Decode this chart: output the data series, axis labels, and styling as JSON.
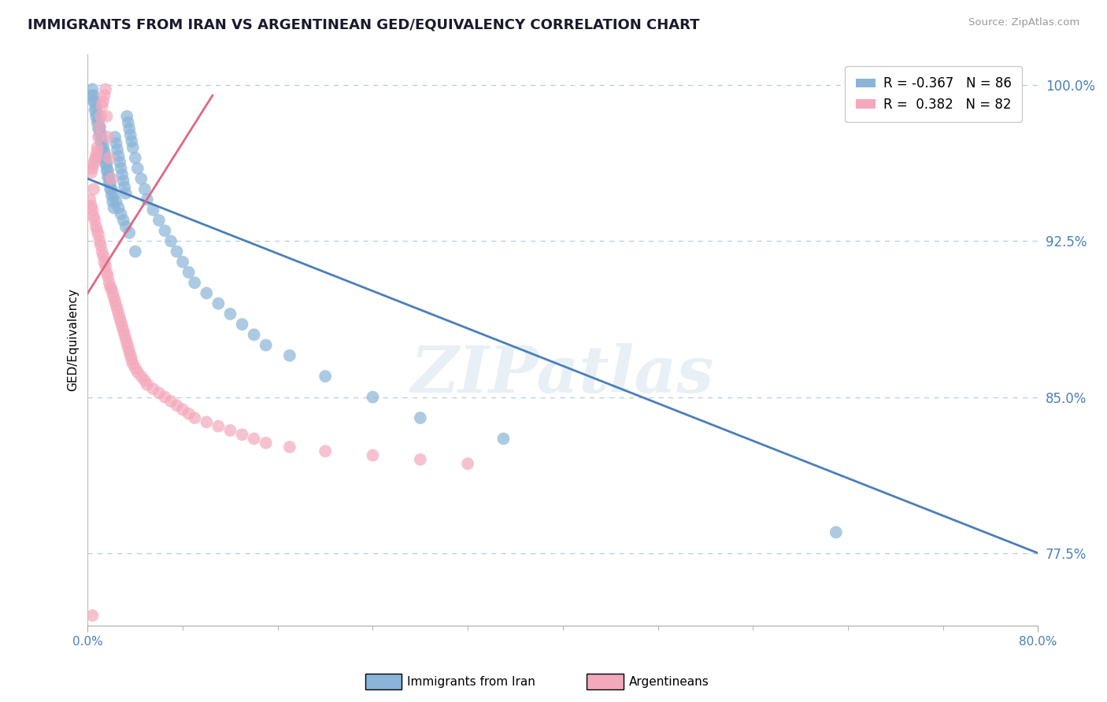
{
  "title": "IMMIGRANTS FROM IRAN VS ARGENTINEAN GED/EQUIVALENCY CORRELATION CHART",
  "source": "Source: ZipAtlas.com",
  "ylabel": "GED/Equivalency",
  "xmin": 0.0,
  "xmax": 80.0,
  "ymin": 74.0,
  "ymax": 101.5,
  "yticks": [
    77.5,
    85.0,
    92.5,
    100.0
  ],
  "ytick_labels": [
    "77.5%",
    "85.0%",
    "92.5%",
    "100.0%"
  ],
  "iran_R": -0.367,
  "iran_N": 86,
  "arg_R": 0.382,
  "arg_N": 82,
  "iran_color": "#8ab4d8",
  "arg_color": "#f4a8bc",
  "iran_line_color": "#4a7fba",
  "arg_line_color": "#e06880",
  "legend_iran_label": "Immigrants from Iran",
  "legend_arg_label": "Argentineans",
  "watermark": "ZIPatlas",
  "iran_x": [
    0.3,
    0.5,
    0.6,
    0.7,
    0.8,
    0.9,
    1.0,
    1.0,
    1.1,
    1.2,
    1.3,
    1.4,
    1.5,
    1.6,
    1.7,
    1.8,
    1.9,
    2.0,
    2.1,
    2.2,
    2.3,
    2.4,
    2.5,
    2.6,
    2.7,
    2.8,
    2.9,
    3.0,
    3.1,
    3.2,
    3.3,
    3.4,
    3.5,
    3.6,
    3.7,
    3.8,
    4.0,
    4.2,
    4.5,
    4.8,
    5.0,
    5.5,
    6.0,
    6.5,
    7.0,
    7.5,
    8.0,
    8.5,
    9.0,
    10.0,
    11.0,
    12.0,
    13.0,
    14.0,
    15.0,
    17.0,
    20.0,
    24.0,
    28.0,
    35.0,
    0.4,
    0.5,
    0.6,
    0.7,
    0.8,
    0.9,
    1.0,
    1.1,
    1.2,
    1.3,
    1.4,
    1.5,
    1.6,
    1.7,
    1.8,
    1.9,
    2.0,
    2.2,
    2.4,
    2.6,
    2.8,
    3.0,
    3.2,
    3.5,
    4.0,
    63.0
  ],
  "iran_y": [
    99.5,
    99.2,
    98.8,
    98.5,
    98.2,
    97.9,
    97.6,
    98.0,
    97.3,
    97.0,
    96.8,
    96.5,
    96.2,
    95.9,
    95.6,
    95.3,
    95.0,
    94.7,
    94.4,
    94.1,
    97.5,
    97.2,
    96.9,
    96.6,
    96.3,
    96.0,
    95.7,
    95.4,
    95.1,
    94.8,
    98.5,
    98.2,
    97.9,
    97.6,
    97.3,
    97.0,
    96.5,
    96.0,
    95.5,
    95.0,
    94.5,
    94.0,
    93.5,
    93.0,
    92.5,
    92.0,
    91.5,
    91.0,
    90.5,
    90.0,
    89.5,
    89.0,
    88.5,
    88.0,
    87.5,
    87.0,
    86.0,
    85.0,
    84.0,
    83.0,
    99.8,
    99.5,
    99.2,
    98.9,
    98.6,
    98.3,
    98.0,
    97.7,
    97.4,
    97.1,
    96.8,
    96.5,
    96.2,
    95.9,
    95.6,
    95.3,
    95.0,
    94.7,
    94.4,
    94.1,
    93.8,
    93.5,
    93.2,
    92.9,
    92.0,
    78.5
  ],
  "arg_x": [
    0.2,
    0.3,
    0.4,
    0.5,
    0.5,
    0.6,
    0.7,
    0.7,
    0.8,
    0.8,
    0.9,
    0.9,
    1.0,
    1.0,
    1.1,
    1.1,
    1.2,
    1.2,
    1.3,
    1.3,
    1.4,
    1.4,
    1.5,
    1.5,
    1.6,
    1.6,
    1.7,
    1.7,
    1.8,
    1.8,
    1.9,
    2.0,
    2.0,
    2.1,
    2.2,
    2.3,
    2.4,
    2.5,
    2.6,
    2.7,
    2.8,
    2.9,
    3.0,
    3.1,
    3.2,
    3.3,
    3.4,
    3.5,
    3.6,
    3.7,
    3.8,
    4.0,
    4.2,
    4.5,
    4.8,
    5.0,
    5.5,
    6.0,
    6.5,
    7.0,
    7.5,
    8.0,
    8.5,
    9.0,
    10.0,
    11.0,
    12.0,
    13.0,
    14.0,
    15.0,
    17.0,
    20.0,
    24.0,
    28.0,
    32.0,
    0.3,
    0.4,
    0.5,
    0.6,
    0.7,
    0.8,
    0.4
  ],
  "arg_y": [
    94.5,
    94.2,
    94.0,
    93.7,
    95.0,
    93.5,
    93.2,
    96.5,
    93.0,
    97.0,
    92.8,
    97.5,
    92.5,
    98.0,
    92.3,
    98.5,
    92.0,
    99.0,
    91.8,
    99.2,
    91.5,
    99.5,
    91.3,
    99.8,
    91.0,
    98.5,
    90.8,
    97.5,
    90.5,
    96.5,
    90.3,
    90.2,
    95.5,
    90.0,
    89.8,
    89.6,
    89.4,
    89.2,
    89.0,
    88.8,
    88.6,
    88.4,
    88.2,
    88.0,
    87.8,
    87.6,
    87.4,
    87.2,
    87.0,
    86.8,
    86.6,
    86.4,
    86.2,
    86.0,
    85.8,
    85.6,
    85.4,
    85.2,
    85.0,
    84.8,
    84.6,
    84.4,
    84.2,
    84.0,
    83.8,
    83.6,
    83.4,
    83.2,
    83.0,
    82.8,
    82.6,
    82.4,
    82.2,
    82.0,
    81.8,
    95.8,
    96.0,
    96.2,
    96.4,
    96.6,
    96.8,
    74.5
  ],
  "iran_trend_x0": 0.0,
  "iran_trend_x1": 80.0,
  "iran_trend_y0": 95.5,
  "iran_trend_y1": 77.5,
  "arg_trend_x0": 0.0,
  "arg_trend_x1": 10.5,
  "arg_trend_y0": 90.0,
  "arg_trend_y1": 99.5
}
